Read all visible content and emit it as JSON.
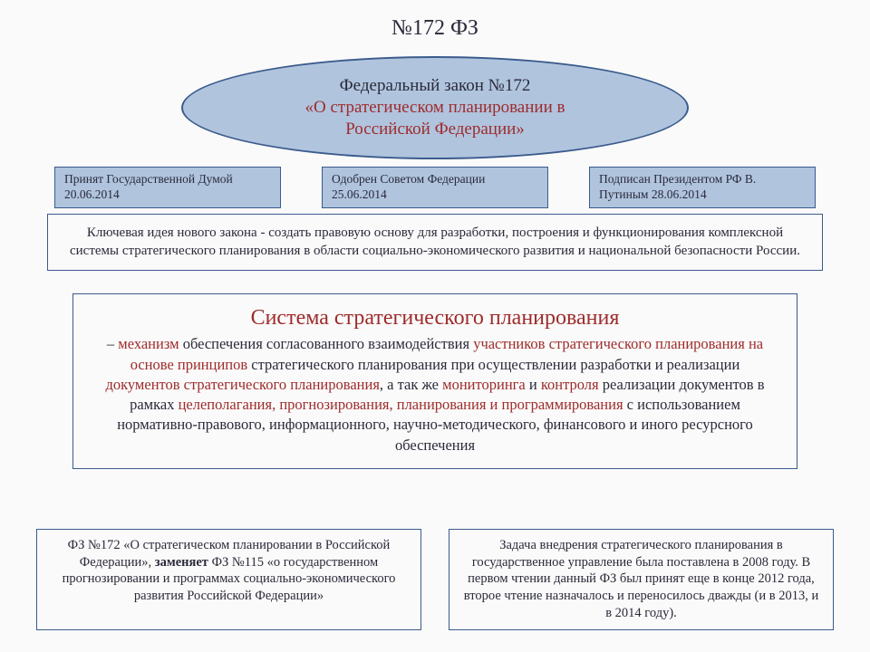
{
  "colors": {
    "fill_blue": "#b0c4de",
    "border_blue": "#3b5b8c",
    "text_dark": "#2a2a3a",
    "text_red": "#9e2b2b",
    "background": "#fafafa"
  },
  "pageTitle": "№172 ФЗ",
  "ellipse": {
    "line1": "Федеральный закон №172",
    "line2a": "«О стратегическом планировании в",
    "line2b": "Российской Федерации»"
  },
  "threeBoxes": [
    "Принят Государственной Думой 20.06.2014",
    "Одобрен Советом Федерации 25.06.2014",
    "Подписан Президентом РФ В. Путиным 28.06.2014"
  ],
  "keyIdea": "Ключевая идея нового закона - создать правовую основу для разработки, построения и функционирования комплексной системы стратегического планирования в области социально-экономического развития и национальной безопасности России.",
  "system": {
    "title": "Система стратегического планирования",
    "parts": [
      {
        "t": "– ",
        "red": false
      },
      {
        "t": "механизм",
        "red": true
      },
      {
        "t": " обеспечения согласованного взаимодействия ",
        "red": false
      },
      {
        "t": "участников стратегического планирования",
        "red": true
      },
      {
        "t": " ",
        "red": false
      },
      {
        "t": "на основе принципов",
        "red": true
      },
      {
        "t": " стратегического планирования при осуществлении разработки и реализации ",
        "red": false
      },
      {
        "t": "документов стратегического планирования",
        "red": true
      },
      {
        "t": ", а так же ",
        "red": false
      },
      {
        "t": "мониторинга",
        "red": true
      },
      {
        "t": " и ",
        "red": false
      },
      {
        "t": "контроля",
        "red": true
      },
      {
        "t": " реализации документов в рамках ",
        "red": false
      },
      {
        "t": "целеполагания, прогнозирования, планирования и программирования",
        "red": true
      },
      {
        "t": " с использованием нормативно-правового, информационного, научно-методического, финансового и иного ресурсного обеспечения",
        "red": false
      }
    ]
  },
  "bottomLeft": {
    "pre": "ФЗ №172 «О стратегическом планировании в Российской Федерации», ",
    "bold": "заменяет",
    "post": " ФЗ №115 «о государственном прогнозировании и программах социально-экономического развития Российской Федерации»"
  },
  "bottomRight": "Задача внедрения стратегического планирования в государственное управление была поставлена в 2008 году. В первом чтении данный ФЗ был принят еще в конце 2012 года, второе чтение назначалось и переносилось дважды (и в 2013, и в 2014 году)."
}
